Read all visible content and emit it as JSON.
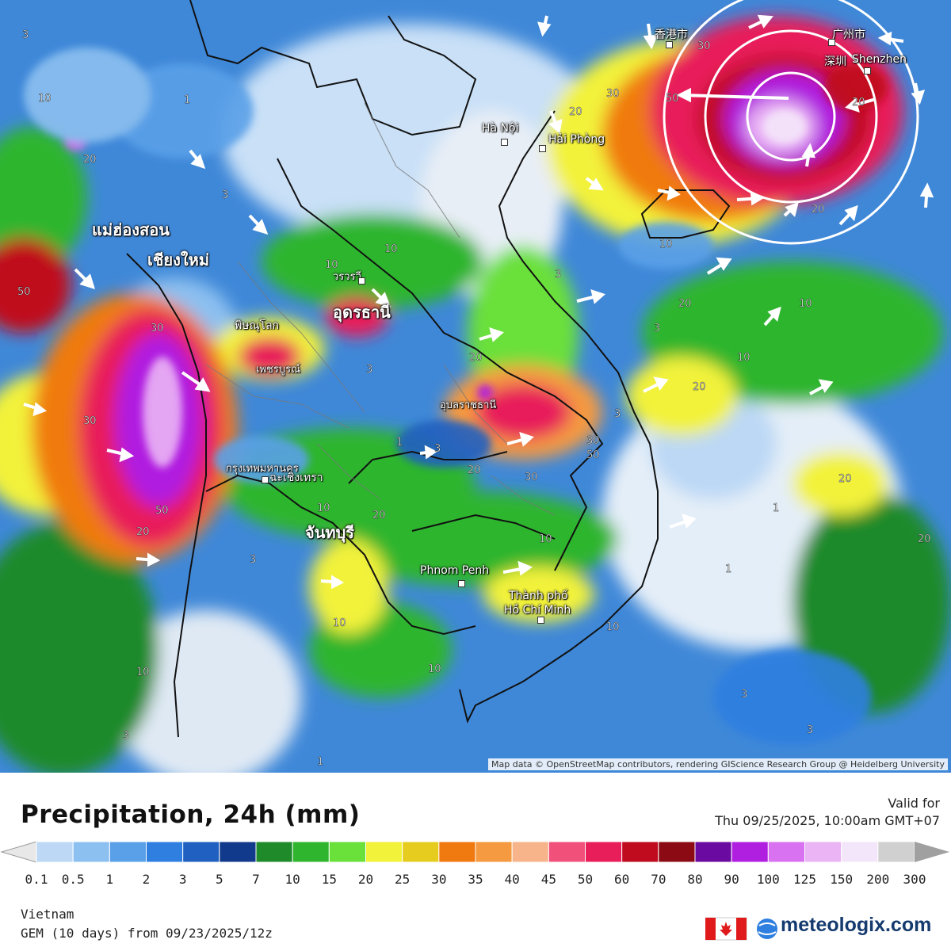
{
  "map": {
    "attribution": "Map data © OpenStreetMap contributors, rendering GIScience Research Group @ Heidelberg University",
    "cities": [
      {
        "name": "แม่ฮ่องสอน"
      },
      {
        "name": "เชียงใหม่"
      },
      {
        "name": "อุดรธานี"
      },
      {
        "name": "พิษณุโลก"
      },
      {
        "name": "เพชรบูรณ์"
      },
      {
        "name": "อุบลราชธานี"
      },
      {
        "name": "กรุงเทพมหานคร"
      },
      {
        "name": "ฉะเชิงเทรา"
      },
      {
        "name": "จันทบุรี"
      },
      {
        "name": "Phnom Penh"
      },
      {
        "name": "Thành phố"
      },
      {
        "name": "Hồ Chí Minh"
      },
      {
        "name": "Hà Nội"
      },
      {
        "name": "Hải Phòng"
      },
      {
        "name": "Shenzhen"
      },
      {
        "name": "深圳"
      },
      {
        "name": "广州市"
      },
      {
        "name": "香港市"
      },
      {
        "name": "วรวรวี"
      }
    ],
    "contour_labels": [
      "3",
      "1",
      "10",
      "20",
      "30",
      "50",
      "5",
      "1",
      "10",
      "20",
      "30",
      "10",
      "3",
      "1",
      "50",
      "20"
    ]
  },
  "legend": {
    "title": "Precipitation, 24h (mm)",
    "valid_label": "Valid for",
    "valid_time": "Thu 09/25/2025, 10:00am GMT+07",
    "ticks": [
      "0.1",
      "0.5",
      "1",
      "2",
      "3",
      "5",
      "7",
      "10",
      "15",
      "20",
      "25",
      "30",
      "35",
      "40",
      "45",
      "50",
      "60",
      "70",
      "80",
      "90",
      "100",
      "125",
      "150",
      "200",
      "300"
    ],
    "colors": [
      "#e8e8e8",
      "#bcd8f5",
      "#8cc0f0",
      "#5aa0e8",
      "#2f7fe0",
      "#2060c0",
      "#123a8c",
      "#1e8a2a",
      "#2fb52e",
      "#6ae03a",
      "#f2f23a",
      "#e6cc1e",
      "#f07a10",
      "#f59a40",
      "#f7b38a",
      "#f0507a",
      "#e81e5a",
      "#c00a1e",
      "#8c0a14",
      "#6a0aa0",
      "#b01ee0",
      "#d872f0",
      "#eab4f5",
      "#f4e6fa",
      "#d0d0d0",
      "#a0a0a0"
    ]
  },
  "footer": {
    "region": "Vietnam",
    "model": "GEM (10 days) from 09/23/2025/12z",
    "brand": "meteologix.com"
  }
}
